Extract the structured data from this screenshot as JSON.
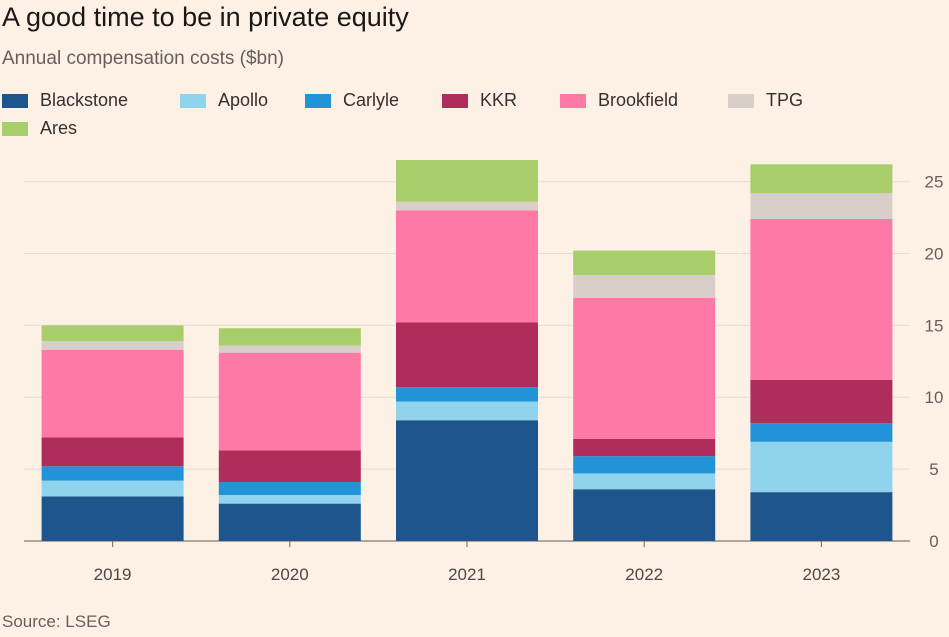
{
  "header": {
    "title": "A good time to be in private equity",
    "subtitle": "Annual compensation costs ($bn)"
  },
  "footer": {
    "source": "Source: LSEG"
  },
  "colors": {
    "Blackstone": "#1f558d",
    "Apollo": "#8fd4ec",
    "Carlyle": "#2193d6",
    "KKR": "#ae2d5b",
    "Brookfield": "#ff79a6",
    "TPG": "#d8cfca",
    "Ares": "#a8ce6b",
    "background": "#fdf1e6",
    "grid": "#e7dcd2",
    "axis_text": "#66605c"
  },
  "chart_data": {
    "type": "bar",
    "stacked": true,
    "categories": [
      "2019",
      "2020",
      "2021",
      "2022",
      "2023"
    ],
    "series": [
      {
        "name": "Blackstone",
        "values": [
          3.1,
          2.6,
          8.4,
          3.6,
          3.4
        ]
      },
      {
        "name": "Apollo",
        "values": [
          1.1,
          0.6,
          1.3,
          1.1,
          3.5
        ]
      },
      {
        "name": "Carlyle",
        "values": [
          1.0,
          0.9,
          1.0,
          1.2,
          1.3
        ]
      },
      {
        "name": "KKR",
        "values": [
          2.0,
          2.2,
          4.5,
          1.2,
          3.0
        ]
      },
      {
        "name": "Brookfield",
        "values": [
          6.1,
          6.8,
          7.8,
          9.8,
          11.2
        ]
      },
      {
        "name": "TPG",
        "values": [
          0.6,
          0.5,
          0.6,
          1.6,
          1.8
        ]
      },
      {
        "name": "Ares",
        "values": [
          1.1,
          1.2,
          2.9,
          1.7,
          2.0
        ]
      }
    ],
    "yticks": [
      "0",
      "5",
      "10",
      "15",
      "20",
      "25"
    ],
    "ylim": [
      0,
      26.5
    ],
    "grid": true,
    "y_axis_side": "right",
    "legend_position": "top-left",
    "xlabel": "",
    "ylabel": ""
  }
}
